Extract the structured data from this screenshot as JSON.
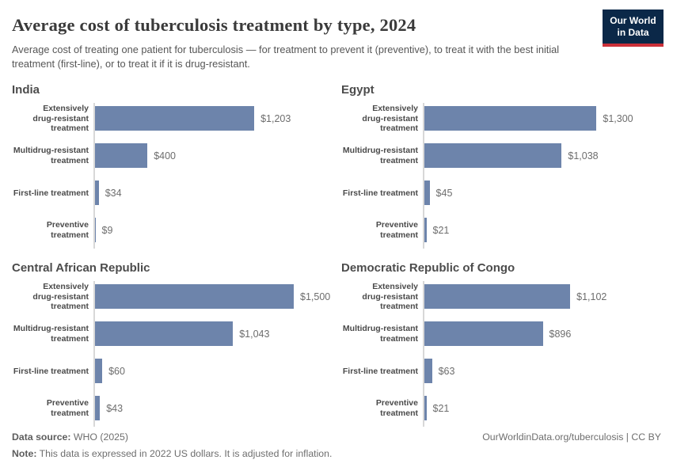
{
  "header": {
    "title": "Average cost of tuberculosis treatment by type, 2024",
    "subtitle": "Average cost of treating one patient for tuberculosis — for treatment to prevent it (preventive), to treat it with the best initial treatment (first-line), or to treat it if it is drug-resistant.",
    "logo": {
      "line1": "Our World",
      "line2": "in Data",
      "navy": "#0b2848",
      "red": "#cb3039"
    }
  },
  "chart_data": {
    "type": "bar",
    "orientation": "horizontal",
    "unit": "US dollars (2022)",
    "xlim": [
      0,
      1500
    ],
    "grid": false,
    "bar_color": "#6d84ab",
    "categories": [
      "Extensively drug-resistant treatment",
      "Multidrug-resistant treatment",
      "First-line treatment",
      "Preventive treatment"
    ],
    "category_lines": [
      [
        "Extensively",
        "drug-resistant",
        "treatment"
      ],
      [
        "Multidrug-resistant",
        "treatment"
      ],
      [
        "First-line treatment"
      ],
      [
        "Preventive",
        "treatment"
      ]
    ],
    "panels": [
      {
        "title": "India",
        "values": [
          1203,
          400,
          34,
          9
        ],
        "value_labels": [
          "$1,203",
          "$400",
          "$34",
          "$9"
        ]
      },
      {
        "title": "Egypt",
        "values": [
          1300,
          1038,
          45,
          21
        ],
        "value_labels": [
          "$1,300",
          "$1,038",
          "$45",
          "$21"
        ]
      },
      {
        "title": "Central African Republic",
        "values": [
          1500,
          1043,
          60,
          43
        ],
        "value_labels": [
          "$1,500",
          "$1,043",
          "$60",
          "$43"
        ]
      },
      {
        "title": "Democratic Republic of Congo",
        "values": [
          1102,
          896,
          63,
          21
        ],
        "value_labels": [
          "$1,102",
          "$896",
          "$63",
          "$21"
        ]
      }
    ]
  },
  "footer": {
    "source_label": "Data source:",
    "source_text": " WHO (2025)",
    "note_label": "Note:",
    "note_text": " This data is expressed in 2022 US dollars. It is adjusted for inflation.",
    "link": "OurWorldinData.org/tuberculosis | CC BY"
  }
}
